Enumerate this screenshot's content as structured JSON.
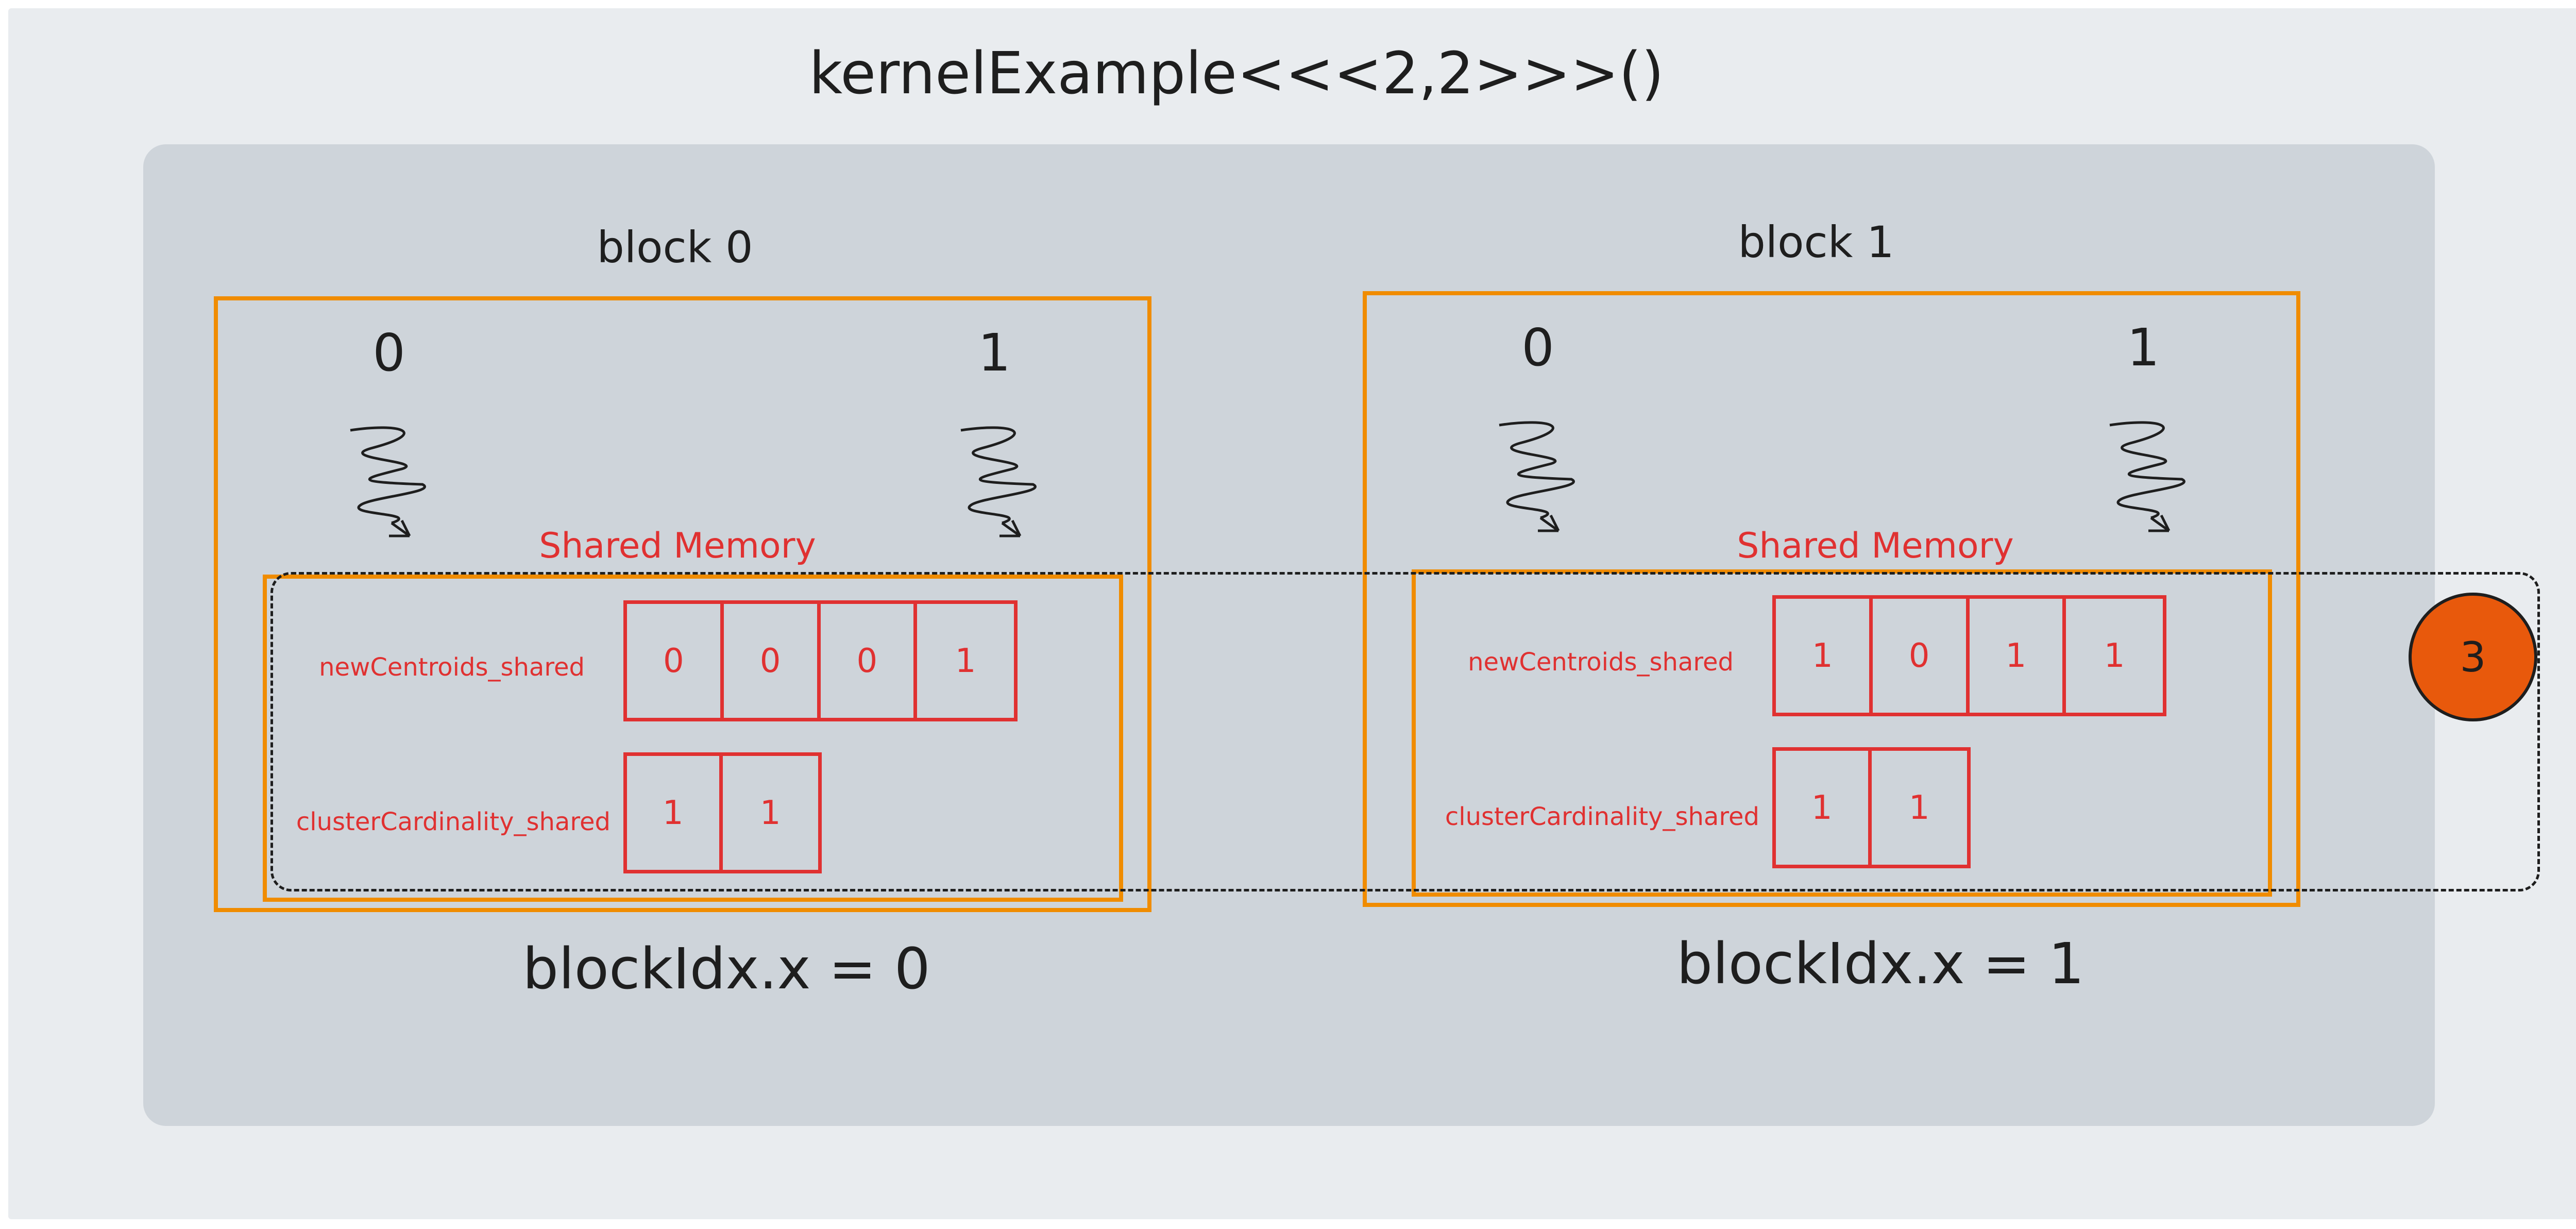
{
  "title": "kernelExample<<<2,2>>>()",
  "blocks": [
    {
      "label": "block 0",
      "threads": [
        "0",
        "1"
      ],
      "shared_memory_title": "Shared Memory",
      "new_centroids": {
        "label": "newCentroids_shared",
        "values": [
          "0",
          "0",
          "0",
          "1"
        ]
      },
      "cluster_cardinality": {
        "label": "clusterCardinality_shared",
        "values": [
          "1",
          "1"
        ]
      },
      "block_idx": "blockIdx.x = 0"
    },
    {
      "label": "block 1",
      "threads": [
        "0",
        "1"
      ],
      "shared_memory_title": "Shared Memory",
      "new_centroids": {
        "label": "newCentroids_shared",
        "values": [
          "1",
          "0",
          "1",
          "1"
        ]
      },
      "cluster_cardinality": {
        "label": "clusterCardinality_shared",
        "values": [
          "1",
          "1"
        ]
      },
      "block_idx": "blockIdx.x = 1"
    }
  ],
  "step_badge": "3",
  "colors": {
    "background": "#e9ecef",
    "grid_area": "#ced4da",
    "block_border": "#f08c00",
    "memory_text": "#e03131",
    "badge_fill": "#e8590c",
    "ink": "#1e1e1e"
  }
}
